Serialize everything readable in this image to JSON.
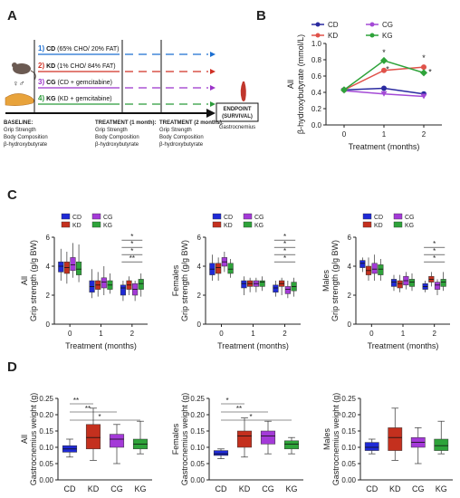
{
  "panels": {
    "a": "A",
    "b": "B",
    "c": "C",
    "d": "D"
  },
  "colors": {
    "CD": "#1f2ad6",
    "KD": "#c4301e",
    "CG": "#a43ad8",
    "KG": "#2ea33a",
    "lineCD": "#2a2aa0",
    "lineKD": "#e0524a",
    "lineCG": "#a44ad6",
    "lineKG": "#2ea33a"
  },
  "panel_a": {
    "groups": [
      {
        "num": "1)",
        "name": "CD",
        "desc": " (65% CHO/ 20% FAT)"
      },
      {
        "num": "2)",
        "name": "KD",
        "desc": " (1% CHO/ 84% FAT)"
      },
      {
        "num": "3)",
        "name": "CG",
        "desc": " (CD + gemcitabine)"
      },
      {
        "num": "4)",
        "name": "KG",
        "desc": " (KD + gemcitabine)"
      }
    ],
    "baseline": [
      "BASELINE:",
      "Grip Strength",
      "Body Composition",
      "β-hydroxybutyrate"
    ],
    "treatment1": [
      "TREATMENT (1 month):",
      "Grip Strength",
      "Body Composition",
      "β-hydroxybutyrate"
    ],
    "treatment2": [
      "TREATMENT (2 months):",
      "Grip Strength",
      "Body Composition",
      "β-hydroxybutyrate"
    ],
    "endpoint": [
      "ENDPOINT",
      "(SURVIVAL)"
    ],
    "tissue": "Gastrocnemius",
    "sex_symbols": "♀♂"
  },
  "chart_data": [
    {
      "id": "B",
      "type": "line",
      "ylabel_lines": [
        "All",
        "β-hydroxybutyrate (mmol/L)"
      ],
      "xlabel": "Treatment (months)",
      "x": [
        0,
        1,
        2
      ],
      "ylim": [
        0,
        1.0
      ],
      "yticks": [
        "0.0",
        "0.2",
        "0.4",
        "0.6",
        "0.8",
        "1.0"
      ],
      "xticks": [
        "0",
        "1",
        "2"
      ],
      "legend": [
        "CD",
        "CG",
        "KD",
        "KG"
      ],
      "series": [
        {
          "name": "CD",
          "values": [
            0.43,
            0.45,
            0.38
          ]
        },
        {
          "name": "KD",
          "values": [
            0.43,
            0.67,
            0.71
          ]
        },
        {
          "name": "CG",
          "values": [
            0.42,
            0.38,
            0.35
          ]
        },
        {
          "name": "KG",
          "values": [
            0.43,
            0.79,
            0.64
          ]
        }
      ],
      "stars": [
        "*",
        "*",
        "*",
        "*"
      ]
    },
    {
      "id": "C-all",
      "type": "box",
      "ylabel_lines": [
        "All",
        "Grip strength (g/g BW)"
      ],
      "xlabel": "Treatment (months)",
      "ylim": [
        0,
        6
      ],
      "yticks": [
        "0",
        "2",
        "4",
        "6"
      ],
      "xticks": [
        "0",
        "1",
        "2"
      ],
      "legend": [
        "CD",
        "CG",
        "KD",
        "KG"
      ],
      "boxes": [
        [
          [
            3.0,
            3.6,
            4.0,
            4.3,
            5.2
          ],
          [
            2.8,
            3.5,
            3.9,
            4.3,
            5.0
          ],
          [
            3.2,
            3.7,
            4.1,
            4.6,
            5.6
          ],
          [
            2.9,
            3.4,
            3.8,
            4.3,
            5.5
          ]
        ],
        [
          [
            1.8,
            2.2,
            2.6,
            3.0,
            3.8
          ],
          [
            1.9,
            2.4,
            2.7,
            3.0,
            3.6
          ],
          [
            2.0,
            2.5,
            2.9,
            3.2,
            4.0
          ],
          [
            2.1,
            2.4,
            2.7,
            3.0,
            3.5
          ]
        ],
        [
          [
            1.6,
            2.0,
            2.5,
            2.7,
            3.0
          ],
          [
            2.0,
            2.4,
            2.7,
            3.0,
            3.3
          ],
          [
            1.6,
            2.0,
            2.4,
            2.8,
            3.0
          ],
          [
            1.9,
            2.4,
            2.8,
            3.1,
            3.5
          ]
        ]
      ],
      "stars": [
        "**",
        "*",
        "*",
        "*"
      ]
    },
    {
      "id": "C-females",
      "type": "box",
      "ylabel_lines": [
        "Females",
        "Grip strength (g/g BW)"
      ],
      "xlabel": "Treatment (months)",
      "ylim": [
        0,
        6
      ],
      "yticks": [
        "0",
        "2",
        "4",
        "6"
      ],
      "xticks": [
        "0",
        "1",
        "2"
      ],
      "legend": [
        "CD",
        "CG",
        "KD",
        "KG"
      ],
      "boxes": [
        [
          [
            3.0,
            3.4,
            3.8,
            4.2,
            4.8
          ],
          [
            3.0,
            3.5,
            3.9,
            4.2,
            4.6
          ],
          [
            3.6,
            4.0,
            4.3,
            4.6,
            5.0
          ],
          [
            3.2,
            3.5,
            3.8,
            4.2,
            4.5
          ]
        ],
        [
          [
            2.0,
            2.5,
            2.8,
            3.0,
            3.3
          ],
          [
            2.2,
            2.6,
            2.8,
            3.0,
            3.2
          ],
          [
            2.2,
            2.6,
            2.8,
            3.0,
            3.2
          ],
          [
            2.3,
            2.6,
            2.9,
            3.0,
            3.3
          ]
        ],
        [
          [
            1.9,
            2.2,
            2.5,
            2.7,
            3.0
          ],
          [
            2.0,
            2.6,
            2.8,
            3.0,
            3.2
          ],
          [
            1.8,
            2.1,
            2.4,
            2.6,
            3.0
          ],
          [
            1.9,
            2.3,
            2.6,
            2.9,
            3.2
          ]
        ]
      ],
      "stars": [
        "*",
        "*",
        "*",
        "*"
      ]
    },
    {
      "id": "C-males",
      "type": "box",
      "ylabel_lines": [
        "Males",
        "Grip strength (g/g BW)"
      ],
      "xlabel": "Treatment (months)",
      "ylim": [
        0,
        6
      ],
      "yticks": [
        "0",
        "2",
        "4",
        "6"
      ],
      "xticks": [
        "0",
        "1",
        "2"
      ],
      "legend": [
        "CD",
        "CG",
        "KD",
        "KG"
      ],
      "boxes": [
        [
          [
            3.6,
            3.9,
            4.2,
            4.4,
            4.6
          ],
          [
            3.0,
            3.4,
            3.7,
            4.0,
            4.6
          ],
          [
            3.0,
            3.5,
            3.8,
            4.2,
            4.8
          ],
          [
            3.0,
            3.4,
            3.8,
            4.1,
            4.5
          ]
        ],
        [
          [
            2.3,
            2.6,
            2.9,
            3.1,
            3.4
          ],
          [
            2.2,
            2.5,
            2.8,
            3.0,
            3.4
          ],
          [
            2.4,
            2.7,
            3.0,
            3.3,
            3.6
          ],
          [
            2.3,
            2.6,
            2.9,
            3.1,
            3.5
          ]
        ],
        [
          [
            2.2,
            2.4,
            2.6,
            2.8,
            3.0
          ],
          [
            2.6,
            2.9,
            3.1,
            3.3,
            3.6
          ],
          [
            2.0,
            2.4,
            2.7,
            2.9,
            3.1
          ],
          [
            2.3,
            2.6,
            2.9,
            3.1,
            3.6
          ]
        ]
      ],
      "stars": [
        "*",
        "*",
        "*"
      ]
    },
    {
      "id": "D-all",
      "type": "box",
      "ylabel_lines": [
        "All",
        "Gastrocnemius weight (g)"
      ],
      "categories": [
        "CD",
        "KD",
        "CG",
        "KG"
      ],
      "ylim": [
        0,
        0.25
      ],
      "yticks": [
        "0.00",
        "0.05",
        "0.10",
        "0.15",
        "0.20",
        "0.25"
      ],
      "boxes": [
        [
          0.07,
          0.085,
          0.095,
          0.105,
          0.125
        ],
        [
          0.06,
          0.095,
          0.13,
          0.17,
          0.22
        ],
        [
          0.05,
          0.1,
          0.125,
          0.14,
          0.17
        ],
        [
          0.08,
          0.095,
          0.11,
          0.125,
          0.18
        ]
      ],
      "stars": [
        "**",
        "**",
        "*"
      ]
    },
    {
      "id": "D-females",
      "type": "box",
      "ylabel_lines": [
        "Females",
        "Gastrocnemius weight (g)"
      ],
      "categories": [
        "CD",
        "KD",
        "CG",
        "KG"
      ],
      "ylim": [
        0,
        0.25
      ],
      "yticks": [
        "0.00",
        "0.05",
        "0.10",
        "0.15",
        "0.20",
        "0.25"
      ],
      "boxes": [
        [
          0.065,
          0.075,
          0.08,
          0.09,
          0.095
        ],
        [
          0.07,
          0.1,
          0.135,
          0.15,
          0.19
        ],
        [
          0.08,
          0.11,
          0.135,
          0.15,
          0.18
        ],
        [
          0.08,
          0.095,
          0.11,
          0.12,
          0.13
        ]
      ],
      "stars": [
        "*",
        "**",
        "*"
      ]
    },
    {
      "id": "D-males",
      "type": "box",
      "ylabel_lines": [
        "Males",
        "Gastrocnemius weight (g)"
      ],
      "categories": [
        "CD",
        "KD",
        "CG",
        "KG"
      ],
      "ylim": [
        0,
        0.25
      ],
      "yticks": [
        "0.00",
        "0.05",
        "0.10",
        "0.15",
        "0.20",
        "0.25"
      ],
      "boxes": [
        [
          0.08,
          0.09,
          0.1,
          0.115,
          0.125
        ],
        [
          0.06,
          0.09,
          0.13,
          0.16,
          0.22
        ],
        [
          0.05,
          0.1,
          0.115,
          0.13,
          0.16
        ],
        [
          0.08,
          0.09,
          0.105,
          0.125,
          0.18
        ]
      ],
      "stars": []
    }
  ]
}
